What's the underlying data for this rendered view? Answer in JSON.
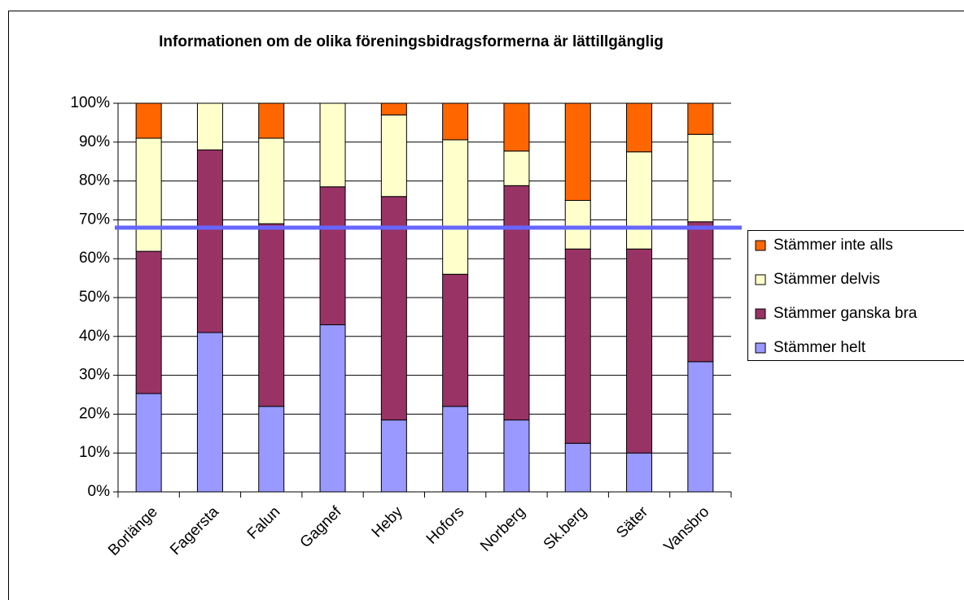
{
  "chart_data": {
    "type": "stacked_bar",
    "title": "Informationen om de olika föreningsbidragsformerna är lättillgänglig",
    "categories": [
      "Borlänge",
      "Fagersta",
      "Falun",
      "Gagnef",
      "Heby",
      "Hofors",
      "Norberg",
      "Sk.berg",
      "Säter",
      "Vansbro"
    ],
    "series": [
      {
        "name": "Stämmer helt",
        "color": "#9999ff",
        "values": [
          25.3,
          41,
          22,
          43,
          18.5,
          22,
          18.5,
          12.5,
          10,
          33.5
        ]
      },
      {
        "name": "Stämmer ganska bra",
        "color": "#993366",
        "values": [
          36.6,
          47,
          47,
          35.5,
          57.5,
          34,
          60.3,
          50,
          52.5,
          36
        ]
      },
      {
        "name": "Stämmer delvis",
        "color": "#ffffcc",
        "values": [
          29.1,
          12,
          22,
          21.5,
          21,
          34.6,
          8.9,
          12.5,
          25,
          22.5
        ]
      },
      {
        "name": "Stämmer inte alls",
        "color": "#ff6600",
        "values": [
          9,
          0,
          9,
          0,
          3,
          9.4,
          12.3,
          25,
          12.5,
          8
        ]
      }
    ],
    "reference_line": {
      "value": 68,
      "color": "#6666ff"
    },
    "ylim": [
      0,
      100
    ],
    "yticks": [
      {
        "value": 0,
        "label": "0%"
      },
      {
        "value": 10,
        "label": "10%"
      },
      {
        "value": 20,
        "label": "20%"
      },
      {
        "value": 30,
        "label": "30%"
      },
      {
        "value": 40,
        "label": "40%"
      },
      {
        "value": 50,
        "label": "50%"
      },
      {
        "value": 60,
        "label": "60%"
      },
      {
        "value": 70,
        "label": "70%"
      },
      {
        "value": 80,
        "label": "80%"
      },
      {
        "value": 90,
        "label": "90%"
      },
      {
        "value": 100,
        "label": "100%"
      }
    ],
    "grid": true,
    "legend": "right"
  }
}
